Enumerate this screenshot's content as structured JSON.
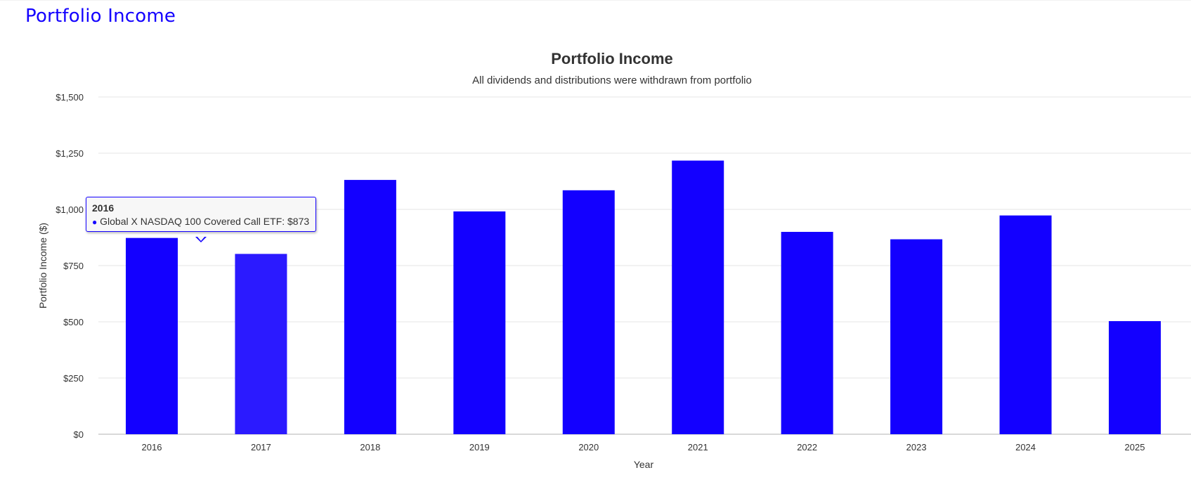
{
  "page": {
    "title": "Portfolio Income"
  },
  "colors": {
    "accent": "#1300ff",
    "bar": "#1300ff",
    "bar_hover": "#2b1aff",
    "grid": "#e6e6e6",
    "text": "#333333"
  },
  "chart_data": {
    "type": "bar",
    "title": "Portfolio Income",
    "subtitle": "All dividends and distributions were withdrawn from portfolio",
    "xlabel": "Year",
    "ylabel": "Portfolio Income ($)",
    "categories": [
      "2016",
      "2017",
      "2018",
      "2019",
      "2020",
      "2021",
      "2022",
      "2023",
      "2024",
      "2025"
    ],
    "series": [
      {
        "name": "Global X NASDAQ 100 Covered Call ETF",
        "values": [
          873,
          802,
          1131,
          991,
          1085,
          1217,
          900,
          867,
          973,
          503
        ]
      }
    ],
    "ylim": [
      0,
      1500
    ],
    "yticks": [
      0,
      250,
      500,
      750,
      1000,
      1250,
      1500
    ],
    "ytick_labels": [
      "$0",
      "$250",
      "$500",
      "$750",
      "$1,000",
      "$1,250",
      "$1,500"
    ],
    "grid": true,
    "legend": "none",
    "highlighted_category": "2017"
  },
  "tooltip": {
    "year": "2016",
    "bullet": "●",
    "text": "Global X NASDAQ 100 Covered Call ETF: $873"
  }
}
